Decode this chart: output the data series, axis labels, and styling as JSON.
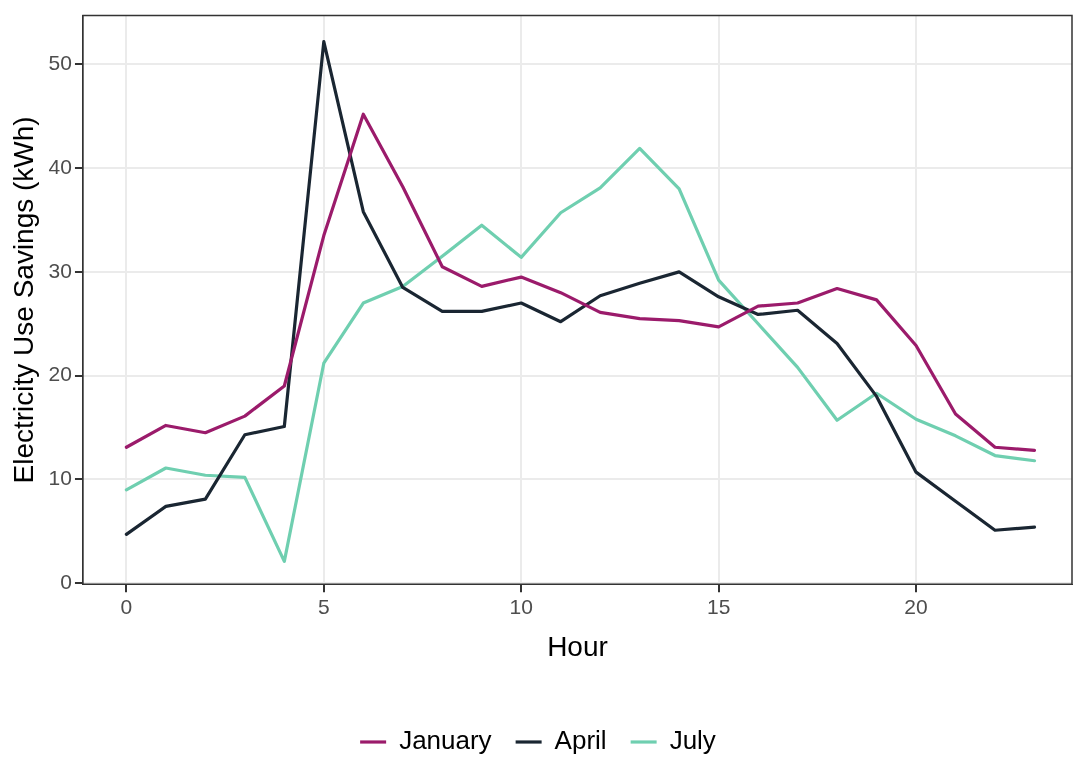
{
  "chart_data": {
    "type": "line",
    "xlabel": "Hour",
    "ylabel": "Electricity Use Savings (kWh)",
    "x": [
      0,
      1,
      2,
      3,
      4,
      5,
      6,
      7,
      8,
      9,
      10,
      11,
      12,
      13,
      14,
      15,
      16,
      17,
      18,
      19,
      20,
      21,
      22,
      23
    ],
    "series": [
      {
        "name": "January",
        "color": "#9b1b6b",
        "values": [
          13.1,
          15.2,
          14.5,
          16.1,
          19,
          33.5,
          45.2,
          38.2,
          30.5,
          28.6,
          29.5,
          28,
          26.1,
          25.5,
          25.3,
          24.7,
          26.7,
          27,
          28.4,
          27.3,
          22.9,
          16.3,
          13.1,
          12.8
        ]
      },
      {
        "name": "April",
        "color": "#1a2632",
        "values": [
          4.7,
          7.4,
          8.1,
          14.3,
          15.1,
          52.2,
          35.8,
          28.5,
          26.2,
          26.2,
          27,
          25.2,
          27.7,
          28.9,
          30,
          27.6,
          25.9,
          26.3,
          23.1,
          18,
          10.7,
          7.9,
          5.1,
          5.4
        ]
      },
      {
        "name": "July",
        "color": "#6fcfb0",
        "values": [
          9,
          11.1,
          10.4,
          10.2,
          2.1,
          21.2,
          27,
          28.6,
          31.5,
          34.5,
          31.4,
          35.7,
          38.1,
          41.9,
          38,
          29.2,
          25,
          20.8,
          15.7,
          18.3,
          15.8,
          14.2,
          12.3,
          11.8
        ]
      }
    ],
    "xlim": [
      -1.1,
      23.95
    ],
    "xticks": [
      0,
      5,
      10,
      15,
      20
    ],
    "ylim": [
      -0.1,
      54.7
    ],
    "yticks": [
      0,
      10,
      20,
      30,
      40,
      50
    ],
    "grid": true,
    "legend": "bottom",
    "marker": "none",
    "line_style": "solid"
  }
}
